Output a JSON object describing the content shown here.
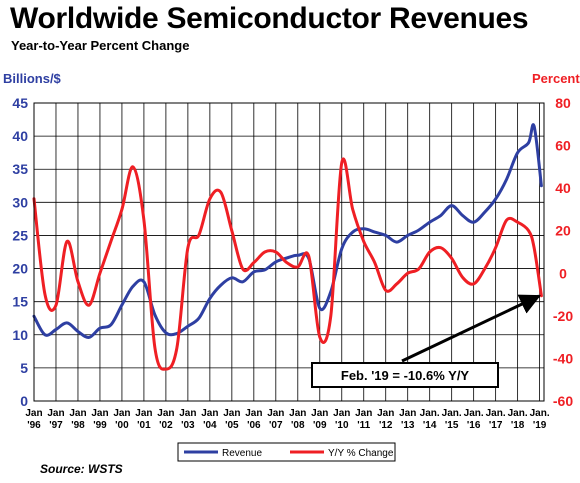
{
  "title": "Worldwide Semiconductor Revenues",
  "subtitle": "Year-to-Year Percent Change",
  "source": "Source: WSTS",
  "colors": {
    "revenue": "#2e3fa2",
    "yoy": "#ef1f24",
    "axis": "#000000",
    "grid": "#000000"
  },
  "chart_data": {
    "type": "line",
    "left_axis_label": "Billions/$",
    "right_axis_label": "Percent",
    "left_ylim": [
      0,
      45
    ],
    "right_ylim": [
      -60,
      80
    ],
    "left_ticks": [
      "45",
      "40",
      "35",
      "30",
      "25",
      "20",
      "15",
      "10",
      "5",
      "0"
    ],
    "right_ticks": [
      "80",
      "60",
      "40",
      "20",
      "0",
      "-20",
      "-40",
      "-60"
    ],
    "grid": true,
    "legend_position": "bottom",
    "x_ticks": [
      {
        "top": "Jan",
        "bottom": "'96"
      },
      {
        "top": "Jan",
        "bottom": "'97"
      },
      {
        "top": "Jan",
        "bottom": "'98"
      },
      {
        "top": "Jan",
        "bottom": "'99"
      },
      {
        "top": "Jan",
        "bottom": "'00"
      },
      {
        "top": "Jan",
        "bottom": "'01"
      },
      {
        "top": "Jan",
        "bottom": "'02"
      },
      {
        "top": "Jan",
        "bottom": "'03"
      },
      {
        "top": "Jan",
        "bottom": "'04"
      },
      {
        "top": "Jan",
        "bottom": "'05"
      },
      {
        "top": "Jan",
        "bottom": "'06"
      },
      {
        "top": "Jan",
        "bottom": "'07"
      },
      {
        "top": "Jan",
        "bottom": "'08"
      },
      {
        "top": "Jan",
        "bottom": "'09"
      },
      {
        "top": "Jan",
        "bottom": "'10"
      },
      {
        "top": "Jan",
        "bottom": "'11"
      },
      {
        "top": "Jan",
        "bottom": "'12"
      },
      {
        "top": "Jan",
        "bottom": "'13"
      },
      {
        "top": "Jan.",
        "bottom": "'14"
      },
      {
        "top": "Jan.",
        "bottom": "'15"
      },
      {
        "top": "Jan.",
        "bottom": "'16"
      },
      {
        "top": "Jan.",
        "bottom": "'17"
      },
      {
        "top": "Jan.",
        "bottom": "'18"
      },
      {
        "top": "Jan.",
        "bottom": "'19"
      }
    ],
    "x": [
      "1996-01",
      "1996-07",
      "1997-01",
      "1997-07",
      "1998-01",
      "1998-07",
      "1999-01",
      "1999-07",
      "2000-01",
      "2000-07",
      "2001-01",
      "2001-07",
      "2002-01",
      "2002-07",
      "2003-01",
      "2003-07",
      "2004-01",
      "2004-07",
      "2005-01",
      "2005-07",
      "2006-01",
      "2006-07",
      "2007-01",
      "2007-07",
      "2008-01",
      "2008-07",
      "2009-01",
      "2009-07",
      "2010-01",
      "2010-07",
      "2011-01",
      "2011-07",
      "2012-01",
      "2012-07",
      "2013-01",
      "2013-07",
      "2014-01",
      "2014-07",
      "2015-01",
      "2015-07",
      "2016-01",
      "2016-07",
      "2017-01",
      "2017-07",
      "2018-01",
      "2018-07",
      "2018-10",
      "2019-02"
    ],
    "series": [
      {
        "name": "Revenue",
        "axis": "left",
        "values": [
          12.8,
          10.0,
          10.8,
          11.8,
          10.5,
          9.6,
          11.0,
          11.5,
          14.5,
          17.3,
          18.0,
          13.0,
          10.3,
          10.2,
          11.3,
          12.5,
          15.5,
          17.5,
          18.6,
          18.0,
          19.5,
          19.8,
          21.0,
          21.6,
          22.0,
          21.5,
          14.0,
          16.5,
          23.0,
          25.5,
          26.0,
          25.5,
          25.0,
          24.0,
          25.0,
          25.8,
          27.0,
          28.0,
          29.5,
          28.0,
          27.0,
          28.5,
          30.5,
          33.5,
          37.5,
          39.0,
          41.5,
          32.5
        ]
      },
      {
        "name": "Y/Y % Change",
        "axis": "right",
        "values": [
          35,
          -10,
          -15,
          15,
          -4,
          -15,
          0,
          15,
          30,
          50,
          25,
          -35,
          -45,
          -35,
          12,
          18,
          35,
          38,
          20,
          2,
          5,
          10,
          10,
          5,
          3,
          8,
          -30,
          -20,
          52,
          30,
          15,
          5,
          -8,
          -5,
          0,
          2,
          10,
          12,
          7,
          -2,
          -5,
          2,
          12,
          25,
          24,
          20,
          12,
          -10.6
        ]
      }
    ],
    "annotation": "Feb. '19 = -10.6% Y/Y"
  }
}
